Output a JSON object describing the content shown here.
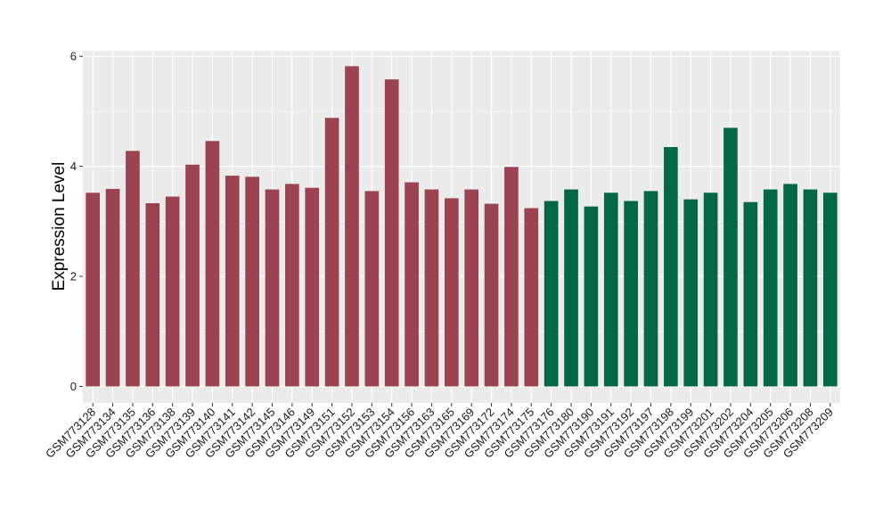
{
  "chart_data": {
    "type": "bar",
    "title": "",
    "xlabel": "",
    "ylabel": "Expression Level",
    "ylim": [
      -0.3,
      6.1
    ],
    "yticks": [
      0,
      2,
      4,
      6
    ],
    "grid": true,
    "legend": "none",
    "categories": [
      "GSM773128",
      "GSM773134",
      "GSM773135",
      "GSM773136",
      "GSM773138",
      "GSM773139",
      "GSM773140",
      "GSM773141",
      "GSM773142",
      "GSM773145",
      "GSM773146",
      "GSM773149",
      "GSM773151",
      "GSM773152",
      "GSM773153",
      "GSM773154",
      "GSM773156",
      "GSM773163",
      "GSM773165",
      "GSM773169",
      "GSM773172",
      "GSM773174",
      "GSM773175",
      "GSM773176",
      "GSM773180",
      "GSM773190",
      "GSM773191",
      "GSM773192",
      "GSM773197",
      "GSM773198",
      "GSM773199",
      "GSM773201",
      "GSM773202",
      "GSM773204",
      "GSM773205",
      "GSM773206",
      "GSM773208",
      "GSM773209"
    ],
    "values": [
      3.52,
      3.59,
      4.28,
      3.33,
      3.45,
      4.03,
      4.46,
      3.83,
      3.81,
      3.58,
      3.68,
      3.61,
      4.88,
      5.82,
      3.55,
      5.58,
      3.71,
      3.58,
      3.42,
      3.58,
      3.32,
      3.99,
      3.24,
      3.37,
      3.58,
      3.27,
      3.52,
      3.37,
      3.55,
      4.35,
      3.4,
      3.52,
      4.7,
      3.35,
      3.58,
      3.68,
      3.58,
      3.52
    ],
    "groups": [
      0,
      0,
      0,
      0,
      0,
      0,
      0,
      0,
      0,
      0,
      0,
      0,
      0,
      0,
      0,
      0,
      0,
      0,
      0,
      0,
      0,
      0,
      0,
      1,
      1,
      1,
      1,
      1,
      1,
      1,
      1,
      1,
      1,
      1,
      1,
      1,
      1,
      1
    ],
    "colors": [
      "#9b4450",
      "#036644"
    ],
    "panel_background": "#ebebeb",
    "grid_color": "#ffffff"
  }
}
